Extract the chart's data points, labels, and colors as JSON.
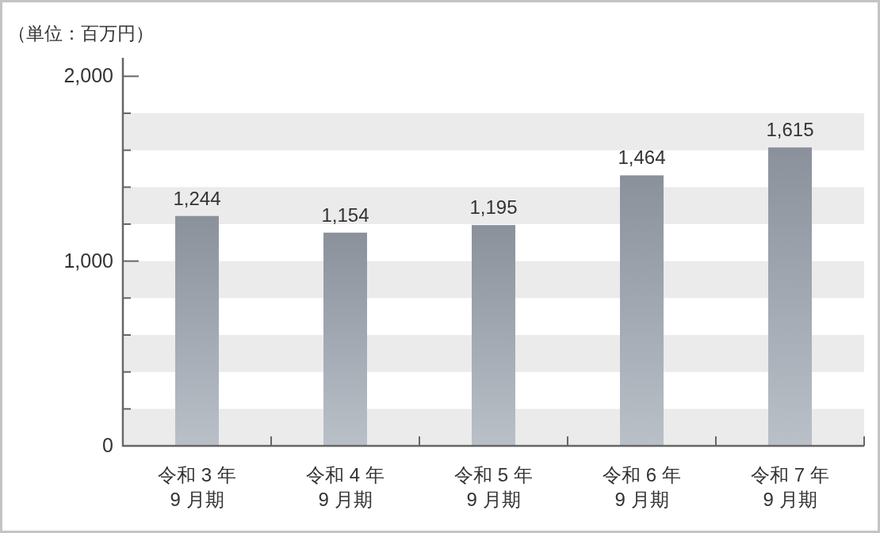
{
  "chart_data": {
    "type": "bar",
    "ylabel": "（単位：百万円）",
    "categories": [
      "令和 3 年\n9 月期",
      "令和 4 年\n9 月期",
      "令和 5 年\n9 月期",
      "令和 6 年\n9 月期",
      "令和 7 年\n9 月期"
    ],
    "values": [
      1244,
      1154,
      1195,
      1464,
      1615
    ],
    "value_labels": [
      "1,244",
      "1,154",
      "1,195",
      "1,464",
      "1,615"
    ],
    "color": "#9da5b0",
    "ylim": [
      0,
      2100
    ],
    "yticks": [
      0,
      {
        "value": 200,
        "label": null
      },
      {
        "value": 400,
        "label": null
      },
      {
        "value": 600,
        "label": null
      },
      {
        "value": 800,
        "label": null
      },
      {
        "value": 1000,
        "label": "1,000"
      },
      {
        "value": 1200,
        "label": null
      },
      {
        "value": 1400,
        "label": null
      },
      {
        "value": 1600,
        "label": null
      },
      {
        "value": 1800,
        "label": null
      },
      {
        "value": 2000,
        "label": "2,000"
      }
    ],
    "bands": [
      {
        "axis": "y",
        "from": 0,
        "to": 200,
        "color": "#ebebeb"
      },
      {
        "axis": "y",
        "from": 400,
        "to": 600,
        "color": "#ebebeb"
      },
      {
        "axis": "y",
        "from": 800,
        "to": 1000,
        "color": "#ebebeb"
      },
      {
        "axis": "y",
        "from": 1200,
        "to": 1400,
        "color": "#ebebeb"
      },
      {
        "axis": "y",
        "from": 1600,
        "to": 1800,
        "color": "#ebebeb"
      }
    ]
  }
}
